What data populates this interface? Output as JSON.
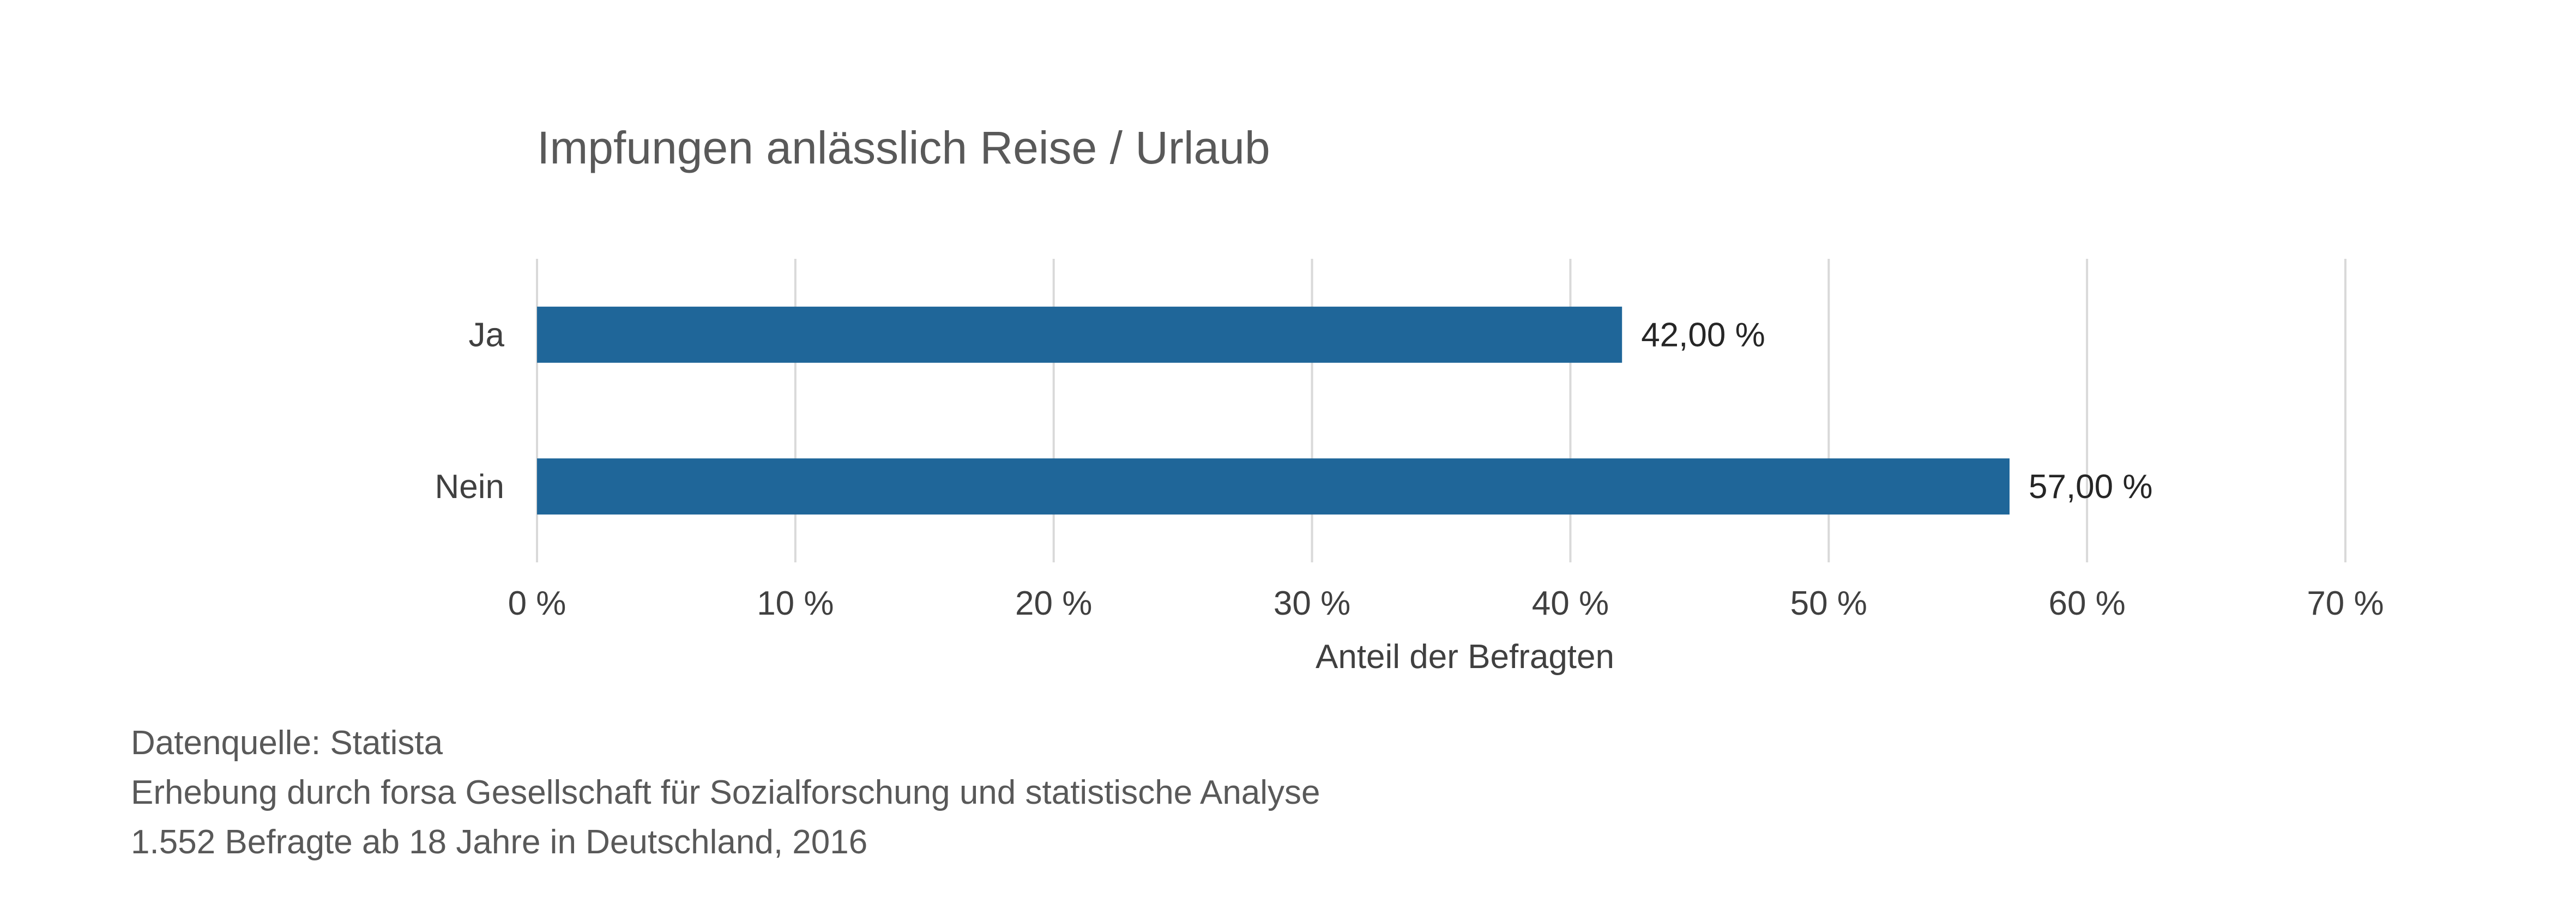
{
  "chart_data": {
    "type": "bar",
    "orientation": "horizontal",
    "title": "Impfungen anlässlich Reise / Urlaub",
    "categories": [
      "Ja",
      "Nein"
    ],
    "values": [
      42.0,
      57.0
    ],
    "data_labels": [
      "42,00 %",
      "57,00 %"
    ],
    "xlabel": "Anteil der Befragten",
    "ylabel": "",
    "xlim": [
      0,
      70
    ],
    "x_ticks": [
      0,
      10,
      20,
      30,
      40,
      50,
      60,
      70
    ],
    "x_tick_labels": [
      "0 %",
      "10 %",
      "20 %",
      "30 %",
      "40 %",
      "50 %",
      "60 %",
      "70 %"
    ],
    "grid": true,
    "legend": "none",
    "bar_color": "#1F6699"
  },
  "footer": {
    "source_line": "Datenquelle: Statista",
    "survey_line": "Erhebung durch forsa Gesellschaft für Sozialforschung und statistische Analyse",
    "sample_line": "1.552 Befragte ab 18 Jahre in Deutschland, 2016"
  }
}
